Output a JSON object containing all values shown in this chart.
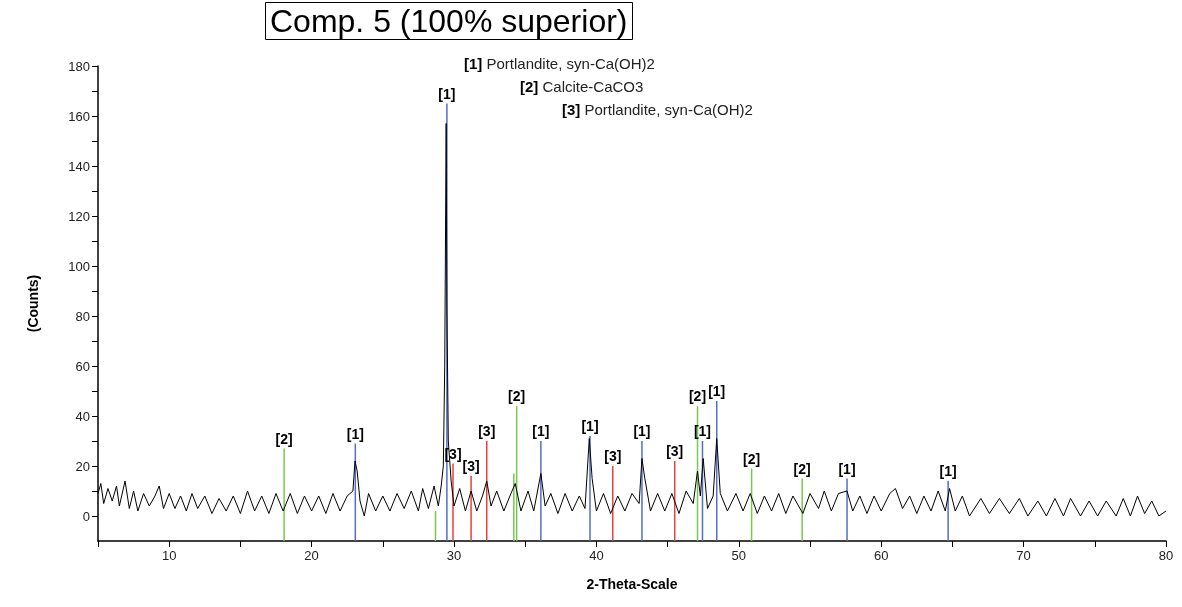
{
  "chart_data": {
    "type": "line",
    "title": "Comp. 5 (100% superior)",
    "xlabel": "2-Theta-Scale",
    "ylabel": "(Counts)",
    "annotations": [
      "[1] Portlandite, syn-Ca(OH)2",
      "[2] Calcite-CaCO3",
      "[3] Portlandite, syn-Ca(OH)2",
      {
        "text": "[1]",
        "x": 23.07,
        "y": 29
      },
      {
        "text": "[1]",
        "x": 29.5,
        "y": 165
      },
      {
        "text": "[1]",
        "x": 36.1,
        "y": 30
      },
      {
        "text": "[1]",
        "x": 39.55,
        "y": 32
      },
      {
        "text": "[1]",
        "x": 43.2,
        "y": 30
      },
      {
        "text": "[1]",
        "x": 47.45,
        "y": 30
      },
      {
        "text": "[1]",
        "x": 48.45,
        "y": 46
      },
      {
        "text": "[1]",
        "x": 57.6,
        "y": 15
      },
      {
        "text": "[1]",
        "x": 64.7,
        "y": 14
      },
      {
        "text": "[2]",
        "x": 18.07,
        "y": 27
      },
      {
        "text": "[2]",
        "x": 34.4,
        "y": 44
      },
      {
        "text": "[2]",
        "x": 47.1,
        "y": 44
      },
      {
        "text": "[2]",
        "x": 50.9,
        "y": 19
      },
      {
        "text": "[2]",
        "x": 54.45,
        "y": 15
      },
      {
        "text": "[3]",
        "x": 29.93,
        "y": 21
      },
      {
        "text": "[3]",
        "x": 31.2,
        "y": 16
      },
      {
        "text": "[3]",
        "x": 32.3,
        "y": 30
      },
      {
        "text": "[3]",
        "x": 41.15,
        "y": 20
      },
      {
        "text": "[3]",
        "x": 45.5,
        "y": 22
      }
    ],
    "xlim": [
      5,
      80
    ],
    "xticks": [
      {
        "value": 5,
        "label": null
      },
      10,
      {
        "value": 15,
        "label": null
      },
      20,
      {
        "value": 25,
        "label": null
      },
      30,
      {
        "value": 35,
        "label": null
      },
      40,
      {
        "value": 45,
        "label": null
      },
      50,
      {
        "value": 55,
        "label": null
      },
      60,
      {
        "value": 65,
        "label": null
      },
      70,
      {
        "value": 75,
        "label": null
      },
      80
    ],
    "ylim": [
      -10,
      180
    ],
    "yticks": [
      0,
      {
        "value": 10,
        "label": null
      },
      20,
      {
        "value": 30,
        "label": null
      },
      40,
      {
        "value": 50,
        "label": null
      },
      60,
      {
        "value": 70,
        "label": null
      },
      80,
      {
        "value": 90,
        "label": null
      },
      100,
      {
        "value": 110,
        "label": null
      },
      120,
      {
        "value": 130,
        "label": null
      },
      140,
      {
        "value": 150,
        "label": null
      },
      160,
      {
        "value": 170,
        "label": null
      },
      180
    ],
    "grid": false,
    "marker": "none",
    "series": [
      {
        "color": "#000000",
        "x": [
          5,
          5.2,
          5.4,
          5.7,
          6,
          6.3,
          6.5,
          6.9,
          7.2,
          7.5,
          7.8,
          8.2,
          8.6,
          9,
          9.3,
          9.6,
          10,
          10.4,
          10.8,
          11.2,
          11.6,
          12,
          12.5,
          13,
          13.5,
          14,
          14.5,
          15,
          15.5,
          16,
          16.5,
          17,
          17.5,
          18,
          18.5,
          19,
          19.5,
          20,
          20.5,
          21,
          21.5,
          22,
          22.5,
          22.9,
          23.05,
          23.2,
          23.4,
          23.7,
          24,
          24.5,
          25,
          25.5,
          26,
          26.5,
          27,
          27.5,
          27.8,
          28.2,
          28.6,
          28.9,
          29.1,
          29.25,
          29.35,
          29.45,
          29.5,
          29.6,
          29.8,
          30,
          30.4,
          30.8,
          31.2,
          31.6,
          32,
          32.3,
          32.6,
          33,
          33.5,
          34,
          34.3,
          34.7,
          35.2,
          35.6,
          36.1,
          36.4,
          36.8,
          37.3,
          37.8,
          38.3,
          38.8,
          39.2,
          39.5,
          39.7,
          40,
          40.5,
          41,
          41.5,
          42,
          42.5,
          43,
          43.2,
          43.4,
          43.8,
          44.3,
          44.8,
          45.3,
          45.8,
          46.3,
          46.8,
          47.1,
          47.3,
          47.5,
          47.8,
          48.2,
          48.45,
          48.7,
          49.2,
          49.8,
          50.3,
          50.8,
          51.3,
          51.8,
          52.3,
          52.8,
          53.3,
          53.8,
          54.5,
          55,
          55.6,
          56,
          56.5,
          57,
          57.6,
          58,
          58.5,
          59,
          59.5,
          60,
          60.6,
          61,
          61.5,
          62,
          62.5,
          63,
          63.5,
          64,
          64.5,
          64.8,
          65.2,
          65.7,
          66.2,
          67,
          67.6,
          68.3,
          69,
          69.7,
          70.3,
          71,
          71.6,
          72.2,
          72.8,
          73.3,
          74,
          74.6,
          75.2,
          75.8,
          76.5,
          77,
          77.5,
          78,
          78.5,
          79,
          79.5,
          80
        ],
        "values": [
          9,
          13,
          5,
          11,
          6,
          12,
          4,
          14,
          3,
          10,
          2,
          9,
          4,
          8,
          12,
          3,
          9,
          3,
          8,
          2,
          9,
          3,
          8,
          1,
          7,
          2,
          8,
          1,
          10,
          2,
          8,
          1,
          9,
          2,
          9,
          1,
          8,
          2,
          8,
          1,
          9,
          2,
          8,
          10,
          22,
          18,
          6,
          0,
          9,
          2,
          8,
          2,
          9,
          3,
          10,
          2,
          11,
          3,
          12,
          4,
          12,
          20,
          60,
          157,
          84,
          30,
          14,
          4,
          11,
          2,
          10,
          2,
          8,
          14,
          4,
          10,
          2,
          9,
          13,
          2,
          10,
          2,
          17,
          4,
          9,
          1,
          9,
          2,
          8,
          3,
          31,
          15,
          2,
          9,
          1,
          8,
          2,
          9,
          5,
          23,
          15,
          2,
          9,
          2,
          9,
          1,
          10,
          5,
          18,
          8,
          23,
          3,
          8,
          31,
          9,
          2,
          9,
          2,
          9,
          1,
          8,
          2,
          9,
          1,
          8,
          1,
          9,
          3,
          10,
          2,
          9,
          10,
          2,
          8,
          1,
          8,
          2,
          9,
          11,
          3,
          8,
          1,
          8,
          2,
          10,
          2,
          11,
          2,
          8,
          0,
          7,
          1,
          7,
          1,
          7,
          0,
          6,
          0,
          7,
          0,
          7,
          0,
          6,
          0,
          6,
          0,
          7,
          0,
          8,
          1,
          6,
          0,
          2
        ]
      },
      {
        "type": "bar",
        "color": "#4f6fc8",
        "x": [
          23.07,
          29.5,
          36.1,
          39.55,
          43.2,
          47.45,
          48.45,
          57.6,
          64.7
        ],
        "base": [
          -10,
          -10,
          -10,
          -10,
          -10,
          -10,
          -10,
          -10,
          -10
        ],
        "values": [
          39,
          175,
          40,
          42,
          40,
          40,
          56,
          25,
          24
        ]
      },
      {
        "type": "bar",
        "color": "#78c850",
        "x": [
          18.07,
          28.7,
          34.2,
          34.4,
          47.1,
          50.9,
          54.45
        ],
        "base": [
          -10,
          -10,
          -10,
          -10,
          -10,
          -10,
          -10
        ],
        "values": [
          37,
          12,
          27,
          54,
          54,
          29,
          25
        ]
      },
      {
        "type": "bar",
        "color": "#e84040",
        "x": [
          29.93,
          31.2,
          32.3,
          41.15,
          45.5
        ],
        "base": [
          -10,
          -10,
          -10,
          -10,
          -10
        ],
        "values": [
          31,
          26,
          40,
          30,
          32
        ]
      }
    ]
  }
}
